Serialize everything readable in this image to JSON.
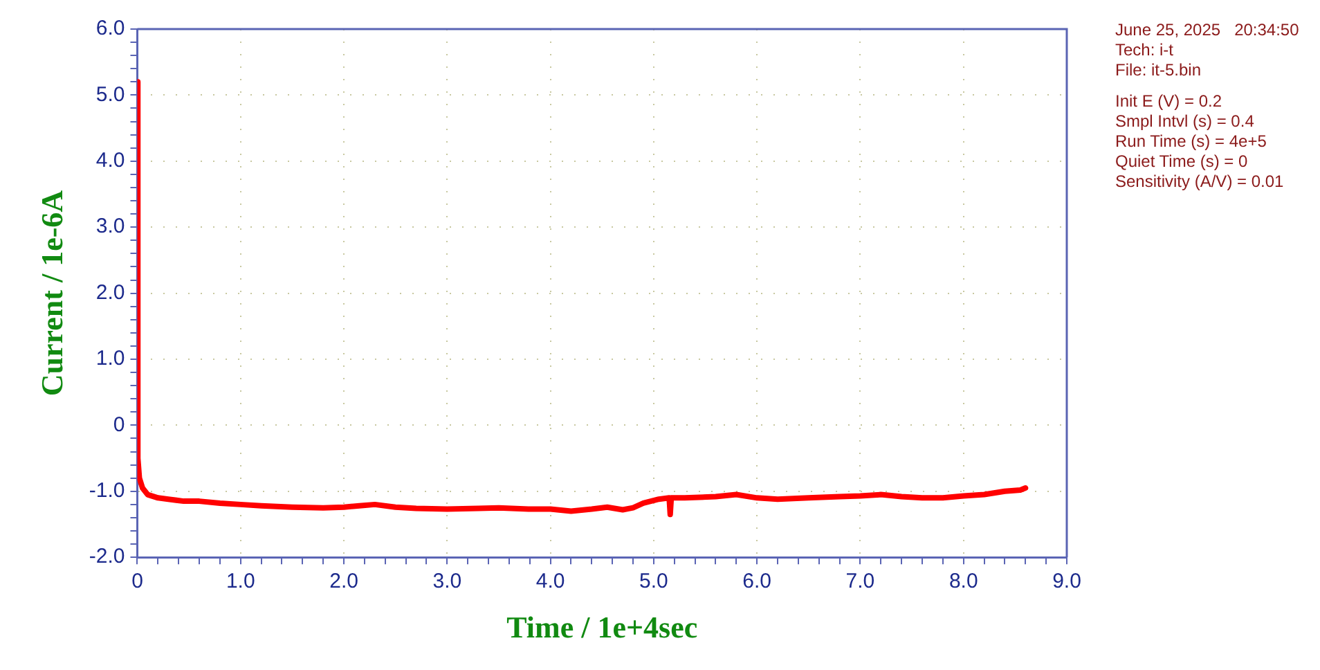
{
  "chart_data": {
    "type": "line",
    "xlabel": "Time / 1e+4sec",
    "ylabel": "Current / 1e-6A",
    "annotations": [
      "June 25, 2025   20:34:50",
      "Tech: i-t",
      "File: it-5.bin",
      "Init E (V) = 0.2",
      "Smpl Intvl (s) = 0.4",
      "Run Time (s) = 4e+5",
      "Quiet Time (s) = 0",
      "Sensitivity (A/V) = 0.01"
    ],
    "x": [
      0,
      0.005,
      0.02,
      0.05,
      0.1,
      0.2,
      0.3,
      0.45,
      0.6,
      0.8,
      1.0,
      1.2,
      1.5,
      1.8,
      2.0,
      2.15,
      2.3,
      2.5,
      2.7,
      3.0,
      3.3,
      3.5,
      3.8,
      4.0,
      4.2,
      4.4,
      4.55,
      4.7,
      4.8,
      4.9,
      5.05,
      5.15,
      5.16,
      5.17,
      5.3,
      5.6,
      5.8,
      6.0,
      6.2,
      6.5,
      6.8,
      7.0,
      7.2,
      7.4,
      7.6,
      7.8,
      8.0,
      8.2,
      8.4,
      8.55,
      8.6
    ],
    "series": [
      {
        "color": "#ff0000",
        "values": [
          5.2,
          -0.5,
          -0.8,
          -0.95,
          -1.05,
          -1.1,
          -1.12,
          -1.15,
          -1.15,
          -1.18,
          -1.2,
          -1.22,
          -1.24,
          -1.25,
          -1.24,
          -1.22,
          -1.2,
          -1.24,
          -1.26,
          -1.27,
          -1.26,
          -1.25,
          -1.27,
          -1.27,
          -1.3,
          -1.27,
          -1.24,
          -1.28,
          -1.25,
          -1.18,
          -1.12,
          -1.1,
          -1.35,
          -1.1,
          -1.1,
          -1.08,
          -1.05,
          -1.1,
          -1.12,
          -1.1,
          -1.08,
          -1.07,
          -1.05,
          -1.08,
          -1.1,
          -1.1,
          -1.07,
          -1.05,
          -1.0,
          -0.98,
          -0.95
        ]
      }
    ],
    "xlim": [
      0,
      9
    ],
    "ylim": [
      -2,
      6
    ],
    "xticks": [
      {
        "value": 0,
        "label": "0"
      },
      {
        "value": 0.2,
        "label": null
      },
      {
        "value": 0.4,
        "label": null
      },
      {
        "value": 0.6,
        "label": null
      },
      {
        "value": 0.8,
        "label": null
      },
      {
        "value": 1,
        "label": "1.0"
      },
      {
        "value": 1.2,
        "label": null
      },
      {
        "value": 1.4,
        "label": null
      },
      {
        "value": 1.6,
        "label": null
      },
      {
        "value": 1.8,
        "label": null
      },
      {
        "value": 2,
        "label": "2.0"
      },
      {
        "value": 2.2,
        "label": null
      },
      {
        "value": 2.4,
        "label": null
      },
      {
        "value": 2.6,
        "label": null
      },
      {
        "value": 2.8,
        "label": null
      },
      {
        "value": 3,
        "label": "3.0"
      },
      {
        "value": 3.2,
        "label": null
      },
      {
        "value": 3.4,
        "label": null
      },
      {
        "value": 3.6,
        "label": null
      },
      {
        "value": 3.8,
        "label": null
      },
      {
        "value": 4,
        "label": "4.0"
      },
      {
        "value": 4.2,
        "label": null
      },
      {
        "value": 4.4,
        "label": null
      },
      {
        "value": 4.6,
        "label": null
      },
      {
        "value": 4.8,
        "label": null
      },
      {
        "value": 5,
        "label": "5.0"
      },
      {
        "value": 5.2,
        "label": null
      },
      {
        "value": 5.4,
        "label": null
      },
      {
        "value": 5.6,
        "label": null
      },
      {
        "value": 5.8,
        "label": null
      },
      {
        "value": 6,
        "label": "6.0"
      },
      {
        "value": 6.2,
        "label": null
      },
      {
        "value": 6.4,
        "label": null
      },
      {
        "value": 6.6,
        "label": null
      },
      {
        "value": 6.8,
        "label": null
      },
      {
        "value": 7,
        "label": "7.0"
      },
      {
        "value": 7.2,
        "label": null
      },
      {
        "value": 7.4,
        "label": null
      },
      {
        "value": 7.6,
        "label": null
      },
      {
        "value": 7.8,
        "label": null
      },
      {
        "value": 8,
        "label": "8.0"
      },
      {
        "value": 8.2,
        "label": null
      },
      {
        "value": 8.4,
        "label": null
      },
      {
        "value": 8.6,
        "label": null
      },
      {
        "value": 8.8,
        "label": null
      },
      {
        "value": 9,
        "label": "9.0"
      }
    ],
    "yticks": [
      {
        "value": -2,
        "label": "-2.0"
      },
      {
        "value": -1.8,
        "label": null
      },
      {
        "value": -1.6,
        "label": null
      },
      {
        "value": -1.4,
        "label": null
      },
      {
        "value": -1.2,
        "label": null
      },
      {
        "value": -1,
        "label": "-1.0"
      },
      {
        "value": -0.8,
        "label": null
      },
      {
        "value": -0.6,
        "label": null
      },
      {
        "value": -0.4,
        "label": null
      },
      {
        "value": -0.2,
        "label": null
      },
      {
        "value": 0,
        "label": "0"
      },
      {
        "value": 0.2,
        "label": null
      },
      {
        "value": 0.4,
        "label": null
      },
      {
        "value": 0.6,
        "label": null
      },
      {
        "value": 0.8,
        "label": null
      },
      {
        "value": 1,
        "label": "1.0"
      },
      {
        "value": 1.2,
        "label": null
      },
      {
        "value": 1.4,
        "label": null
      },
      {
        "value": 1.6,
        "label": null
      },
      {
        "value": 1.8,
        "label": null
      },
      {
        "value": 2,
        "label": "2.0"
      },
      {
        "value": 2.2,
        "label": null
      },
      {
        "value": 2.4,
        "label": null
      },
      {
        "value": 2.6,
        "label": null
      },
      {
        "value": 2.8,
        "label": null
      },
      {
        "value": 3,
        "label": "3.0"
      },
      {
        "value": 3.2,
        "label": null
      },
      {
        "value": 3.4,
        "label": null
      },
      {
        "value": 3.6,
        "label": null
      },
      {
        "value": 3.8,
        "label": null
      },
      {
        "value": 4,
        "label": "4.0"
      },
      {
        "value": 4.2,
        "label": null
      },
      {
        "value": 4.4,
        "label": null
      },
      {
        "value": 4.6,
        "label": null
      },
      {
        "value": 4.8,
        "label": null
      },
      {
        "value": 5,
        "label": "5.0"
      },
      {
        "value": 5.2,
        "label": null
      },
      {
        "value": 5.4,
        "label": null
      },
      {
        "value": 5.6,
        "label": null
      },
      {
        "value": 5.8,
        "label": null
      },
      {
        "value": 6,
        "label": "6.0"
      }
    ],
    "grid": true,
    "marker": "none",
    "line_style": "solid"
  }
}
